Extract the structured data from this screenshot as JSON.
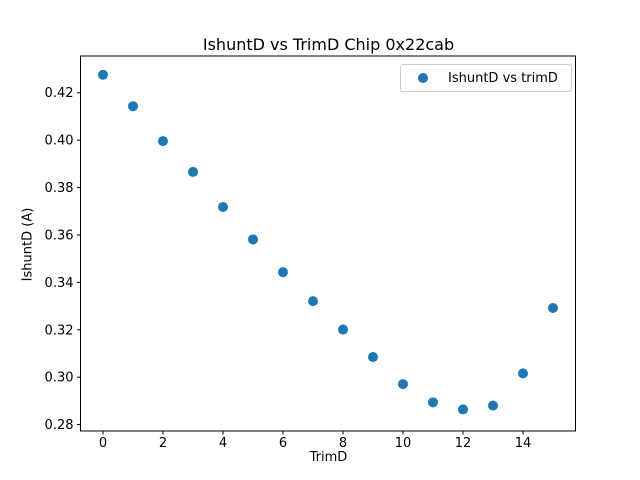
{
  "chart_data": {
    "type": "scatter",
    "title": "IshuntD vs TrimD Chip 0x22cab",
    "xlabel": "TrimD",
    "ylabel": "IshuntD (A)",
    "legend": [
      "IshuntD vs trimD"
    ],
    "legend_position": "upper right",
    "marker_color": "#1f77b4",
    "x": [
      0,
      1,
      2,
      3,
      4,
      5,
      6,
      7,
      8,
      9,
      10,
      11,
      12,
      13,
      14,
      15
    ],
    "y": [
      0.4276,
      0.4143,
      0.3996,
      0.3866,
      0.3718,
      0.3581,
      0.3443,
      0.3321,
      0.3201,
      0.3085,
      0.2971,
      0.2894,
      0.2864,
      0.288,
      0.3016,
      0.3292
    ],
    "xlim": [
      -0.75,
      15.75
    ],
    "ylim": [
      0.2773,
      0.4355
    ],
    "xticks": [
      0,
      2,
      4,
      6,
      8,
      10,
      12,
      14
    ],
    "yticks": [
      0.28,
      0.3,
      0.32,
      0.34,
      0.36,
      0.38,
      0.4,
      0.42
    ],
    "grid": false,
    "axis_color": "#000000"
  }
}
